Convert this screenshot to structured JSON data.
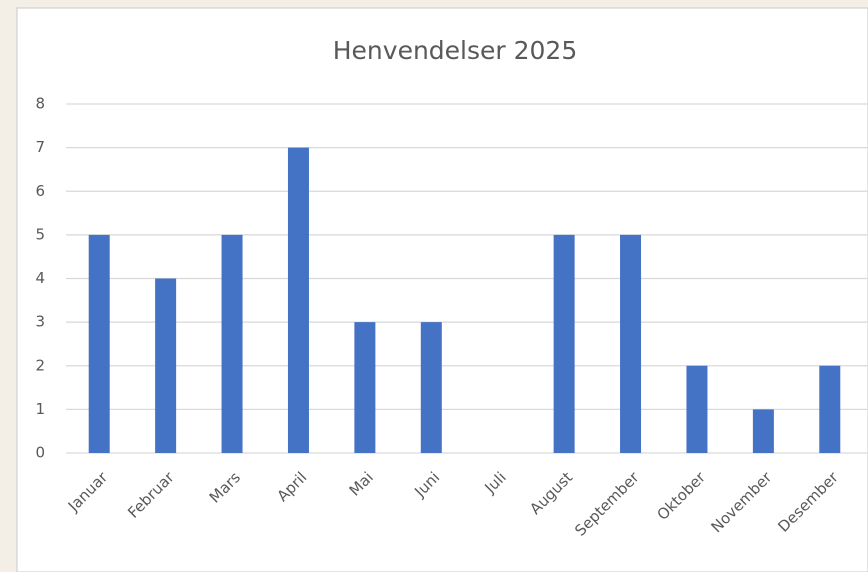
{
  "chart_data": {
    "type": "bar",
    "title": "Henvendelser 2025",
    "categories": [
      "Januar",
      "Februar",
      "Mars",
      "April",
      "Mai",
      "Juni",
      "Juli",
      "August",
      "September",
      "Oktober",
      "November",
      "Desember"
    ],
    "values": [
      5,
      4,
      5,
      7,
      3,
      3,
      0,
      5,
      5,
      2,
      1,
      2
    ],
    "color": "#4472c4",
    "ylim": [
      0,
      8
    ],
    "yticks": [
      0,
      1,
      2,
      3,
      4,
      5,
      6,
      7,
      8
    ],
    "grid": true
  }
}
